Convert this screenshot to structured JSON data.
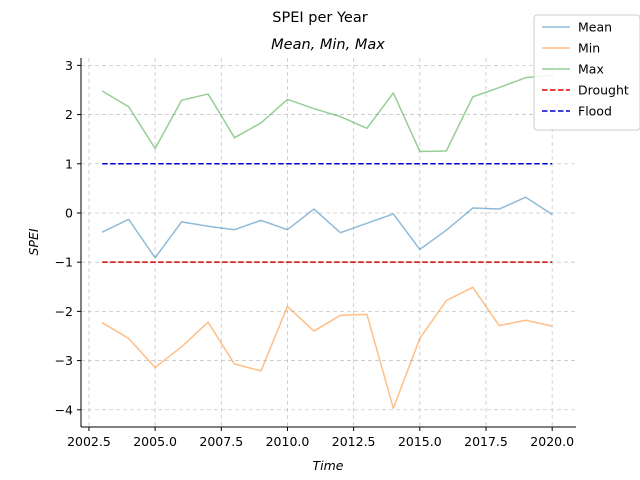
{
  "chart_data": {
    "type": "line",
    "suptitle": "SPEI per Year",
    "title": "Mean, Min, Max",
    "xlabel": "Time",
    "ylabel": "SPEI",
    "xlim": [
      2002.2,
      2020.9
    ],
    "ylim": [
      -4.35,
      3.15
    ],
    "xticks": [
      2002.5,
      2005.0,
      2007.5,
      2010.0,
      2012.5,
      2015.0,
      2017.5,
      2020.0
    ],
    "xtick_labels": [
      "2002.5",
      "2005.0",
      "2007.5",
      "2010.0",
      "2012.5",
      "2015.0",
      "2017.5",
      "2020.0"
    ],
    "yticks": [
      3,
      2,
      1,
      0,
      -1,
      -2,
      -3,
      -4
    ],
    "ytick_labels": [
      "3",
      "2",
      "1",
      "0",
      "−1",
      "−2",
      "−3",
      "−4"
    ],
    "grid": true,
    "legend_position": "top-right",
    "x": [
      2003,
      2004,
      2005,
      2006,
      2007,
      2008,
      2009,
      2010,
      2011,
      2012,
      2013,
      2014,
      2015,
      2016,
      2017,
      2018,
      2019,
      2020
    ],
    "series": [
      {
        "name": "Mean",
        "color": "#1f77b4",
        "opacity": 0.5,
        "style": "solid",
        "values": [
          -0.39,
          -0.13,
          -0.91,
          -0.18,
          -0.27,
          -0.34,
          -0.15,
          -0.34,
          0.08,
          -0.4,
          -0.21,
          -0.02,
          -0.74,
          -0.35,
          0.1,
          0.08,
          0.32,
          -0.03
        ]
      },
      {
        "name": "Min",
        "color": "#ff7f0e",
        "opacity": 0.5,
        "style": "solid",
        "values": [
          -2.23,
          -2.55,
          -3.14,
          -2.72,
          -2.22,
          -3.07,
          -3.21,
          -1.9,
          -2.4,
          -2.08,
          -2.06,
          -3.97,
          -2.55,
          -1.78,
          -1.51,
          -2.29,
          -2.18,
          -2.3
        ]
      },
      {
        "name": "Max",
        "color": "#2ca02c",
        "opacity": 0.5,
        "style": "solid",
        "values": [
          2.48,
          2.16,
          1.31,
          2.29,
          2.42,
          1.53,
          1.83,
          2.31,
          2.12,
          1.96,
          1.72,
          2.44,
          1.25,
          1.26,
          2.36,
          2.55,
          2.75,
          2.8
        ]
      },
      {
        "name": "Drought",
        "color": "#dd0000",
        "opacity": 1,
        "style": "dashed",
        "values": [
          -1,
          -1,
          -1,
          -1,
          -1,
          -1,
          -1,
          -1,
          -1,
          -1,
          -1,
          -1,
          -1,
          -1,
          -1,
          -1,
          -1,
          -1
        ]
      },
      {
        "name": "Flood",
        "color": "#0000cc",
        "opacity": 1,
        "style": "dashed",
        "values": [
          1,
          1,
          1,
          1,
          1,
          1,
          1,
          1,
          1,
          1,
          1,
          1,
          1,
          1,
          1,
          1,
          1,
          1
        ]
      }
    ]
  }
}
